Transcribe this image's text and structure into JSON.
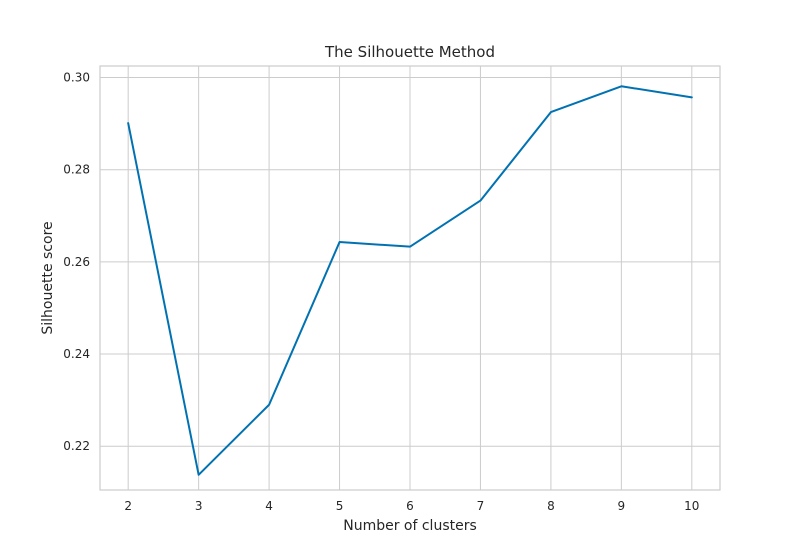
{
  "chart_data": {
    "type": "line",
    "title": "The Silhouette Method",
    "xlabel": "Number of clusters",
    "ylabel": "Silhouette score",
    "x": [
      2,
      3,
      4,
      5,
      6,
      7,
      8,
      9,
      10
    ],
    "series": [
      {
        "values": [
          0.2901,
          0.2138,
          0.229,
          0.2643,
          0.2633,
          0.2733,
          0.2925,
          0.2981,
          0.2957
        ],
        "color": "#0072b2"
      }
    ],
    "xlim": [
      1.6,
      10.4
    ],
    "ylim": [
      0.2105,
      0.3025
    ],
    "xticks": [
      2,
      3,
      4,
      5,
      6,
      7,
      8,
      9,
      10
    ],
    "yticks": [
      0.22,
      0.24,
      0.26,
      0.28,
      0.3
    ],
    "ytick_labels": [
      "0.22",
      "0.24",
      "0.26",
      "0.28",
      "0.30"
    ],
    "grid": true,
    "legend": "none"
  }
}
